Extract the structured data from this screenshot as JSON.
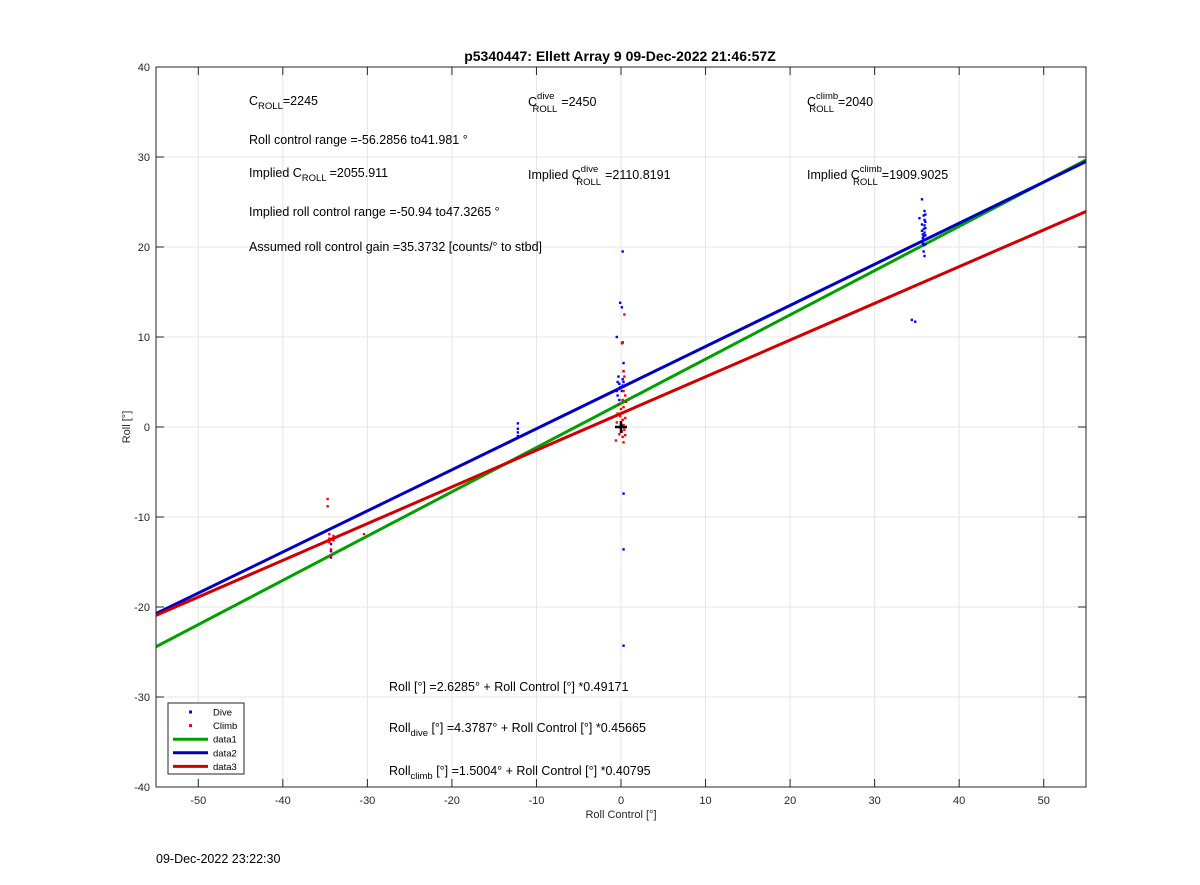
{
  "chart_data": {
    "type": "scatter",
    "title": "p5340447: Ellett Array 9 09-Dec-2022 21:46:57Z",
    "xlabel": "Roll Control [°]",
    "ylabel": "Roll [°]",
    "xlim": [
      -55,
      55
    ],
    "ylim": [
      -40,
      40
    ],
    "xticks": [
      -50,
      -40,
      -30,
      -20,
      -10,
      0,
      10,
      20,
      30,
      40,
      50
    ],
    "yticks": [
      -40,
      -30,
      -20,
      -10,
      0,
      10,
      20,
      30,
      40
    ],
    "grid": true,
    "legend_position": "bottom-left",
    "series": [
      {
        "name": "Dive",
        "kind": "points",
        "color": "#0000ff",
        "x": [
          -34.3,
          -34.3,
          -34.3,
          -12.2,
          -12.2,
          -12.2,
          -12.2,
          -0.5,
          -0.5,
          -0.4,
          -0.4,
          -0.3,
          -0.3,
          -0.2,
          -0.2,
          -0.1,
          -0.1,
          0.1,
          0.1,
          0.2,
          0.2,
          0.2,
          0.2,
          0.3,
          0.3,
          0.3,
          0.3,
          0.3,
          0.3,
          0.3,
          35.3,
          35.6,
          35.6,
          35.6,
          35.7,
          35.7,
          35.7,
          35.7,
          35.8,
          35.8,
          35.8,
          35.8,
          35.8,
          35.9,
          35.9,
          35.9,
          35.9,
          35.9,
          35.9,
          36.0,
          36.0,
          36.0,
          36.0,
          36.0,
          34.8,
          34.4
        ],
        "y": [
          -13.0,
          -13.8,
          -14.5,
          0.4,
          -0.2,
          -0.6,
          -1.0,
          4.0,
          10.0,
          5.0,
          3.5,
          4.2,
          5.6,
          4.8,
          3.0,
          13.8,
          4.4,
          13.3,
          4.0,
          19.5,
          9.4,
          5.3,
          4.6,
          7.1,
          6.2,
          5.0,
          4.5,
          -7.4,
          -13.6,
          -24.3,
          23.2,
          25.3,
          22.5,
          21.8,
          21.4,
          21.0,
          20.7,
          20.4,
          23.5,
          22.0,
          21.2,
          20.2,
          19.5,
          24.0,
          23.0,
          22.4,
          21.6,
          20.8,
          19.0,
          23.6,
          22.8,
          22.1,
          21.3,
          20.3,
          11.7,
          11.9
        ]
      },
      {
        "name": "Climb",
        "kind": "points",
        "color": "#ff0000",
        "x": [
          -34.7,
          -34.7,
          -34.5,
          -34.5,
          -34.5,
          -34.3,
          -34.3,
          -34.0,
          -34.0,
          -30.4,
          -0.6,
          -0.5,
          -0.4,
          -0.3,
          -0.2,
          -0.2,
          -0.1,
          0.0,
          0.0,
          0.1,
          0.1,
          0.2,
          0.2,
          0.2,
          0.3,
          0.3,
          0.3,
          0.3,
          0.3,
          0.4,
          0.4,
          0.4,
          0.5,
          0.5,
          0.5,
          0.6
        ],
        "y": [
          -8.0,
          -8.8,
          -11.9,
          -12.4,
          -12.8,
          -13.6,
          -14.3,
          -12.1,
          -12.6,
          -11.9,
          -1.5,
          0.5,
          1.5,
          2.5,
          0.0,
          -0.8,
          1.2,
          2.0,
          0.3,
          9.3,
          -0.5,
          3.0,
          0.8,
          -1.1,
          6.2,
          4.0,
          2.2,
          0.2,
          -1.7,
          12.5,
          5.6,
          -0.3,
          3.5,
          1.0,
          -0.9,
          2.8
        ]
      },
      {
        "name": "data1",
        "kind": "line",
        "color": "#00a000",
        "intercept": 2.6285,
        "slope": 0.49171
      },
      {
        "name": "data2",
        "kind": "line",
        "color": "#0000c0",
        "intercept": 4.3787,
        "slope": 0.45665
      },
      {
        "name": "data3",
        "kind": "line",
        "color": "#d00000",
        "intercept": 1.5004,
        "slope": 0.40795
      }
    ],
    "marker": {
      "x": 0,
      "y": 0,
      "symbol": "+"
    },
    "annotations": {
      "c_roll": {
        "main": "C",
        "sub": "ROLL",
        "value": "=2245"
      },
      "c_roll_dive": {
        "main": "C",
        "sup": "dive",
        "sub": "ROLL",
        "value": "=2450"
      },
      "c_roll_climb": {
        "main": "C",
        "sup": "climb",
        "sub": "ROLL",
        "value": "=2040"
      },
      "range": "Roll control range =-56.2856 to41.981 °",
      "implied_c": {
        "pre": "Implied C",
        "sub": "ROLL",
        "value": "=2055.911"
      },
      "implied_c_dive": {
        "pre": "Implied C",
        "sup": "dive",
        "sub": "ROLL",
        "value": "=2110.8191"
      },
      "implied_c_climb": {
        "pre": "Implied C",
        "sup": "climb",
        "sub": "ROLL",
        "value": "=1909.9025"
      },
      "implied_range": "Implied roll control range =-50.94 to47.3265 °",
      "gain": "Assumed roll control gain =35.3732 [counts/° to stbd]",
      "fit_all": "Roll [°] =2.6285° + Roll Control [°] *0.49171",
      "fit_dive": {
        "pre": "Roll",
        "sub": "dive",
        "post": " [°] =4.3787° + Roll Control [°] *0.45665"
      },
      "fit_climb": {
        "pre": "Roll",
        "sub": "climb",
        "post": " [°] =1.5004° + Roll Control [°] *0.40795"
      }
    }
  },
  "footer_timestamp": "09-Dec-2022 23:22:30"
}
